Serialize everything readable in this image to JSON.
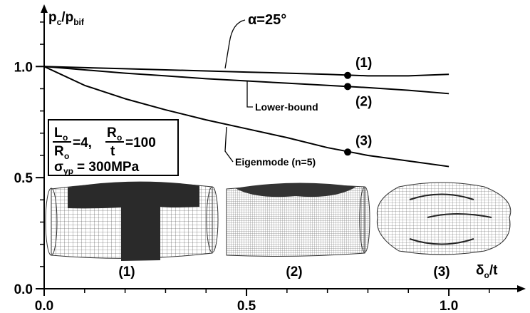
{
  "chart_data": {
    "type": "line",
    "ylabel": [
      {
        "text": "p"
      },
      {
        "text": "c",
        "sub": true
      },
      {
        "text": "/p"
      },
      {
        "text": "bif",
        "sub": true
      }
    ],
    "xlabel": [
      {
        "text": "δ"
      },
      {
        "text": "o",
        "sub": true
      },
      {
        "text": "/t"
      }
    ],
    "xlim": [
      0,
      1.19
    ],
    "ylim": [
      0,
      1.28
    ],
    "xticks": [
      {
        "value": 0,
        "label": "0.0"
      },
      {
        "value": 0.5,
        "label": "0.5"
      },
      {
        "value": 1,
        "label": "1.0"
      }
    ],
    "yticks": [
      {
        "value": 0,
        "label": "0.0"
      },
      {
        "value": 0.5,
        "label": "0.5"
      },
      {
        "value": 1,
        "label": "1.0"
      }
    ],
    "xminorticks": [
      0.1,
      0.2,
      0.3,
      0.4,
      0.6,
      0.7,
      0.8,
      0.9,
      1.1
    ],
    "yminorticks": [
      0.1,
      0.2,
      0.3,
      0.4,
      0.6,
      0.7,
      0.8,
      0.9,
      1.1,
      1.2
    ],
    "x": [
      0,
      0.1,
      0.2,
      0.3,
      0.4,
      0.5,
      0.6,
      0.7,
      0.8,
      0.9,
      1.0
    ],
    "series": [
      {
        "name": "α=25°",
        "color": "#000000",
        "values": [
          1.0,
          0.995,
          0.99,
          0.985,
          0.98,
          0.975,
          0.97,
          0.965,
          0.958,
          0.958,
          0.965
        ]
      },
      {
        "name": "Lower-bound",
        "color": "#000000",
        "values": [
          1.0,
          0.985,
          0.97,
          0.958,
          0.945,
          0.935,
          0.925,
          0.915,
          0.905,
          0.893,
          0.878
        ]
      },
      {
        "name": "Eigenmode (n=5)",
        "color": "#000000",
        "values": [
          1.0,
          0.915,
          0.855,
          0.805,
          0.76,
          0.72,
          0.68,
          0.635,
          0.6,
          0.575,
          0.55
        ]
      }
    ],
    "markers": {
      "x": [
        0.75,
        0.75,
        0.75
      ],
      "y": [
        0.96,
        0.91,
        0.615
      ],
      "labels": [
        "(1)",
        "(2)",
        "(3)"
      ]
    },
    "parameters": [
      "L",
      "o",
      "R",
      "o",
      "=4,",
      "R",
      "o",
      "t",
      "=100",
      "σ",
      "yp",
      "= 300MPa"
    ],
    "insets": [
      {
        "caption": "(1)"
      },
      {
        "caption": "(2)"
      },
      {
        "caption": "(3)"
      }
    ]
  }
}
